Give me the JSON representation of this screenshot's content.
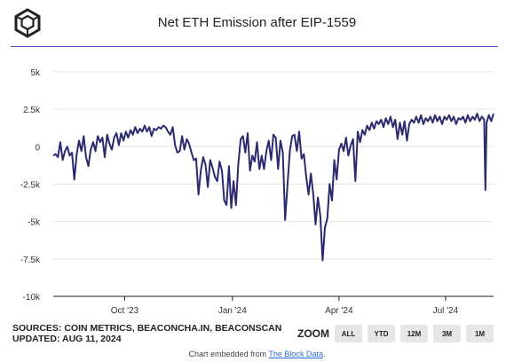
{
  "chart_data": {
    "type": "line",
    "title": "Net ETH Emission after EIP-1559",
    "xlabel": "",
    "ylabel": "",
    "x_range": [
      "2023-08-01",
      "2024-08-11"
    ],
    "ylim": [
      -10000,
      6000
    ],
    "y_ticks": [
      {
        "value": 5000,
        "label": "5k"
      },
      {
        "value": 2500,
        "label": "2.5k"
      },
      {
        "value": 0,
        "label": "0"
      },
      {
        "value": -2500,
        "label": "-2.5k"
      },
      {
        "value": -5000,
        "label": "-5k"
      },
      {
        "value": -7500,
        "label": "-7.5k"
      },
      {
        "value": -10000,
        "label": "-10k"
      }
    ],
    "x_ticks": [
      {
        "value": "2023-10-01",
        "label": "Oct '23"
      },
      {
        "value": "2024-01-01",
        "label": "Jan '24"
      },
      {
        "value": "2024-04-01",
        "label": "Apr '24"
      },
      {
        "value": "2024-07-01",
        "label": "Jul '24"
      }
    ],
    "grid": true,
    "legend": "none",
    "series": [
      {
        "color": "#2b2a6e",
        "points": [
          [
            "2023-08-01",
            -600
          ],
          [
            "2023-08-03",
            -500
          ],
          [
            "2023-08-05",
            -700
          ],
          [
            "2023-08-07",
            300
          ],
          [
            "2023-08-09",
            -900
          ],
          [
            "2023-08-11",
            -300
          ],
          [
            "2023-08-13",
            0
          ],
          [
            "2023-08-15",
            -600
          ],
          [
            "2023-08-17",
            -400
          ],
          [
            "2023-08-19",
            -2200
          ],
          [
            "2023-08-21",
            -500
          ],
          [
            "2023-08-23",
            400
          ],
          [
            "2023-08-25",
            -300
          ],
          [
            "2023-08-27",
            700
          ],
          [
            "2023-08-29",
            -700
          ],
          [
            "2023-08-31",
            -1300
          ],
          [
            "2023-09-02",
            -200
          ],
          [
            "2023-09-04",
            300
          ],
          [
            "2023-09-06",
            -300
          ],
          [
            "2023-09-08",
            700
          ],
          [
            "2023-09-10",
            300
          ],
          [
            "2023-09-12",
            600
          ],
          [
            "2023-09-14",
            -700
          ],
          [
            "2023-09-16",
            800
          ],
          [
            "2023-09-18",
            200
          ],
          [
            "2023-09-20",
            -200
          ],
          [
            "2023-09-22",
            600
          ],
          [
            "2023-09-24",
            900
          ],
          [
            "2023-09-26",
            100
          ],
          [
            "2023-09-28",
            900
          ],
          [
            "2023-09-30",
            400
          ],
          [
            "2023-10-02",
            1000
          ],
          [
            "2023-10-04",
            600
          ],
          [
            "2023-10-06",
            1100
          ],
          [
            "2023-10-08",
            800
          ],
          [
            "2023-10-10",
            1300
          ],
          [
            "2023-10-12",
            900
          ],
          [
            "2023-10-14",
            1200
          ],
          [
            "2023-10-16",
            1000
          ],
          [
            "2023-10-18",
            1400
          ],
          [
            "2023-10-20",
            1000
          ],
          [
            "2023-10-22",
            1300
          ],
          [
            "2023-10-24",
            700
          ],
          [
            "2023-10-26",
            1200
          ],
          [
            "2023-10-28",
            1100
          ],
          [
            "2023-10-30",
            1300
          ],
          [
            "2023-11-01",
            1200
          ],
          [
            "2023-11-03",
            1400
          ],
          [
            "2023-11-05",
            1300
          ],
          [
            "2023-11-07",
            1000
          ],
          [
            "2023-11-09",
            800
          ],
          [
            "2023-11-11",
            1300
          ],
          [
            "2023-11-13",
            100
          ],
          [
            "2023-11-15",
            -400
          ],
          [
            "2023-11-17",
            -300
          ],
          [
            "2023-11-19",
            700
          ],
          [
            "2023-11-21",
            -200
          ],
          [
            "2023-11-23",
            500
          ],
          [
            "2023-11-25",
            200
          ],
          [
            "2023-11-27",
            -400
          ],
          [
            "2023-11-29",
            -900
          ],
          [
            "2023-12-01",
            -800
          ],
          [
            "2023-12-03",
            -3200
          ],
          [
            "2023-12-05",
            -1600
          ],
          [
            "2023-12-07",
            -700
          ],
          [
            "2023-12-09",
            -1200
          ],
          [
            "2023-12-11",
            -2700
          ],
          [
            "2023-12-13",
            -900
          ],
          [
            "2023-12-15",
            -1400
          ],
          [
            "2023-12-17",
            -2000
          ],
          [
            "2023-12-19",
            -2300
          ],
          [
            "2023-12-21",
            -1000
          ],
          [
            "2023-12-23",
            -1600
          ],
          [
            "2023-12-25",
            -3600
          ],
          [
            "2023-12-27",
            -3900
          ],
          [
            "2023-12-29",
            -1300
          ],
          [
            "2023-12-31",
            -4100
          ],
          [
            "2024-01-02",
            -2300
          ],
          [
            "2024-01-04",
            -3900
          ],
          [
            "2024-01-06",
            -1200
          ],
          [
            "2024-01-08",
            500
          ],
          [
            "2024-01-10",
            700
          ],
          [
            "2024-01-12",
            -400
          ],
          [
            "2024-01-14",
            900
          ],
          [
            "2024-01-16",
            -1600
          ],
          [
            "2024-01-18",
            -600
          ],
          [
            "2024-01-20",
            -1000
          ],
          [
            "2024-01-22",
            300
          ],
          [
            "2024-01-24",
            -1500
          ],
          [
            "2024-01-26",
            -600
          ],
          [
            "2024-01-28",
            -1500
          ],
          [
            "2024-01-30",
            -300
          ],
          [
            "2024-02-01",
            400
          ],
          [
            "2024-02-03",
            -900
          ],
          [
            "2024-02-05",
            800
          ],
          [
            "2024-02-07",
            600
          ],
          [
            "2024-02-09",
            -1500
          ],
          [
            "2024-02-11",
            400
          ],
          [
            "2024-02-13",
            -400
          ],
          [
            "2024-02-15",
            -4900
          ],
          [
            "2024-02-17",
            -2600
          ],
          [
            "2024-02-19",
            -300
          ],
          [
            "2024-02-21",
            700
          ],
          [
            "2024-02-23",
            800
          ],
          [
            "2024-02-25",
            -300
          ],
          [
            "2024-02-27",
            1000
          ],
          [
            "2024-02-29",
            -800
          ],
          [
            "2024-03-02",
            -500
          ],
          [
            "2024-03-04",
            -2000
          ],
          [
            "2024-03-06",
            -3200
          ],
          [
            "2024-03-08",
            -1800
          ],
          [
            "2024-03-10",
            -3200
          ],
          [
            "2024-03-12",
            -5200
          ],
          [
            "2024-03-14",
            -3400
          ],
          [
            "2024-03-16",
            -4600
          ],
          [
            "2024-03-18",
            -7600
          ],
          [
            "2024-03-20",
            -5400
          ],
          [
            "2024-03-22",
            -4800
          ],
          [
            "2024-03-24",
            -2500
          ],
          [
            "2024-03-26",
            -3600
          ],
          [
            "2024-03-28",
            -900
          ],
          [
            "2024-03-30",
            -2200
          ],
          [
            "2024-04-01",
            -200
          ],
          [
            "2024-04-03",
            200
          ],
          [
            "2024-04-05",
            -300
          ],
          [
            "2024-04-07",
            600
          ],
          [
            "2024-04-09",
            -600
          ],
          [
            "2024-04-11",
            100
          ],
          [
            "2024-04-13",
            500
          ],
          [
            "2024-04-15",
            -2300
          ],
          [
            "2024-04-17",
            1000
          ],
          [
            "2024-04-19",
            300
          ],
          [
            "2024-04-21",
            1100
          ],
          [
            "2024-04-23",
            800
          ],
          [
            "2024-04-25",
            1400
          ],
          [
            "2024-04-27",
            1100
          ],
          [
            "2024-04-29",
            1600
          ],
          [
            "2024-05-01",
            1200
          ],
          [
            "2024-05-03",
            1700
          ],
          [
            "2024-05-05",
            1500
          ],
          [
            "2024-05-07",
            1800
          ],
          [
            "2024-05-09",
            1300
          ],
          [
            "2024-05-11",
            1900
          ],
          [
            "2024-05-13",
            1500
          ],
          [
            "2024-05-15",
            2000
          ],
          [
            "2024-05-17",
            1300
          ],
          [
            "2024-05-19",
            1800
          ],
          [
            "2024-05-21",
            500
          ],
          [
            "2024-05-23",
            1600
          ],
          [
            "2024-05-25",
            800
          ],
          [
            "2024-05-27",
            1700
          ],
          [
            "2024-05-29",
            400
          ],
          [
            "2024-05-31",
            1500
          ],
          [
            "2024-06-02",
            1800
          ],
          [
            "2024-06-04",
            1600
          ],
          [
            "2024-06-06",
            2000
          ],
          [
            "2024-06-08",
            1600
          ],
          [
            "2024-06-10",
            2100
          ],
          [
            "2024-06-12",
            1500
          ],
          [
            "2024-06-14",
            1900
          ],
          [
            "2024-06-16",
            1700
          ],
          [
            "2024-06-18",
            2000
          ],
          [
            "2024-06-20",
            1600
          ],
          [
            "2024-06-22",
            2100
          ],
          [
            "2024-06-24",
            1700
          ],
          [
            "2024-06-26",
            2000
          ],
          [
            "2024-06-28",
            1500
          ],
          [
            "2024-06-30",
            2000
          ],
          [
            "2024-07-02",
            1800
          ],
          [
            "2024-07-04",
            2100
          ],
          [
            "2024-07-06",
            1700
          ],
          [
            "2024-07-08",
            2000
          ],
          [
            "2024-07-10",
            1500
          ],
          [
            "2024-07-12",
            1900
          ],
          [
            "2024-07-14",
            1800
          ],
          [
            "2024-07-16",
            2000
          ],
          [
            "2024-07-18",
            1600
          ],
          [
            "2024-07-20",
            2100
          ],
          [
            "2024-07-22",
            1700
          ],
          [
            "2024-07-24",
            2000
          ],
          [
            "2024-07-26",
            1800
          ],
          [
            "2024-07-28",
            2200
          ],
          [
            "2024-07-30",
            1700
          ],
          [
            "2024-08-01",
            2000
          ],
          [
            "2024-08-03",
            1800
          ],
          [
            "2024-08-04",
            -2900
          ],
          [
            "2024-08-05",
            1600
          ],
          [
            "2024-08-07",
            2100
          ],
          [
            "2024-08-09",
            1700
          ],
          [
            "2024-08-11",
            2200
          ]
        ]
      }
    ]
  },
  "footer": {
    "sources": "SOURCES: COIN METRICS, BEACONCHA.IN, BEACONSCAN",
    "updated": "UPDATED: AUG 11, 2024",
    "embed_prefix": "Chart embedded from ",
    "embed_link": "The Block Data",
    "embed_suffix": "."
  },
  "zoom": {
    "label": "ZOOM",
    "buttons": [
      "ALL",
      "YTD",
      "12M",
      "3M",
      "1M"
    ]
  },
  "colors": {
    "accent_rule": "#6c45b8",
    "line": "#2b2a6e",
    "grid": "#e3e3e3",
    "button_bg": "#e6e6e6"
  }
}
